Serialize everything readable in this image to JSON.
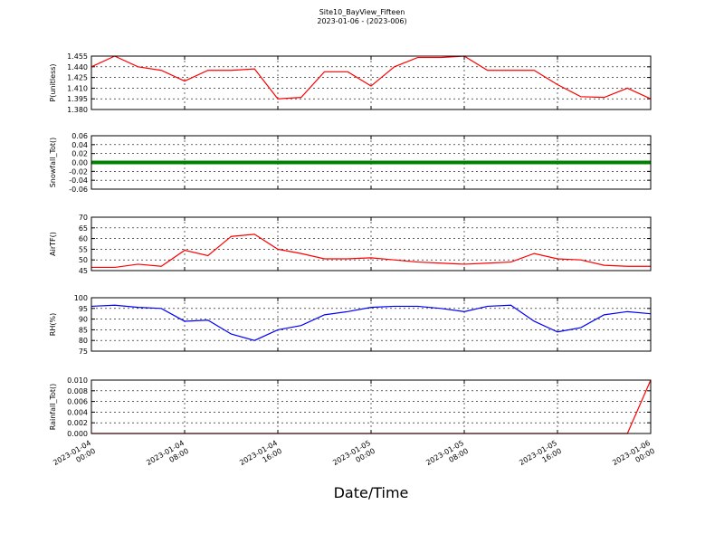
{
  "title": "Site10_BayView_Fifteen",
  "subtitle": "2023-01-06 - (2023-006)",
  "xlabel": "Date/Time",
  "chart_data": [
    {
      "type": "line",
      "ylabel": "P(unitless)",
      "color": "#ff0000",
      "grid": true,
      "xlim": [
        "2023-01-04 00:00",
        "2023-01-06 00:00"
      ],
      "x": [
        "2023-01-04 00:00",
        "2023-01-04 02:00",
        "2023-01-04 04:00",
        "2023-01-04 06:00",
        "2023-01-04 08:00",
        "2023-01-04 10:00",
        "2023-01-04 12:00",
        "2023-01-04 14:00",
        "2023-01-04 16:00",
        "2023-01-04 18:00",
        "2023-01-04 20:00",
        "2023-01-04 22:00",
        "2023-01-05 00:00",
        "2023-01-05 02:00",
        "2023-01-05 04:00",
        "2023-01-05 06:00",
        "2023-01-05 08:00",
        "2023-01-05 10:00",
        "2023-01-05 12:00",
        "2023-01-05 14:00",
        "2023-01-05 16:00",
        "2023-01-05 18:00",
        "2023-01-05 20:00",
        "2023-01-05 22:00",
        "2023-01-06 00:00"
      ],
      "values": [
        1.44,
        1.455,
        1.44,
        1.435,
        1.42,
        1.435,
        1.435,
        1.437,
        1.395,
        1.397,
        1.433,
        1.433,
        1.413,
        1.44,
        1.453,
        1.453,
        1.455,
        1.435,
        1.435,
        1.435,
        1.415,
        1.398,
        1.397,
        1.41,
        1.395
      ],
      "ylim": [
        1.38,
        1.455
      ],
      "yticks": [
        {
          "value": 1.38,
          "label": "1.380"
        },
        {
          "value": 1.395,
          "label": "1.395"
        },
        {
          "value": 1.41,
          "label": "1.410"
        },
        {
          "value": 1.425,
          "label": "1.425"
        },
        {
          "value": 1.44,
          "label": "1.440"
        },
        {
          "value": 1.455,
          "label": "1.455"
        }
      ]
    },
    {
      "type": "line",
      "ylabel": "Snowfall_Tot()",
      "color": "#008000",
      "grid": true,
      "xlim": [
        "2023-01-04 00:00",
        "2023-01-06 00:00"
      ],
      "x": [
        "2023-01-04 00:00",
        "2023-01-04 02:00",
        "2023-01-04 04:00",
        "2023-01-04 06:00",
        "2023-01-04 08:00",
        "2023-01-04 10:00",
        "2023-01-04 12:00",
        "2023-01-04 14:00",
        "2023-01-04 16:00",
        "2023-01-04 18:00",
        "2023-01-04 20:00",
        "2023-01-04 22:00",
        "2023-01-05 00:00",
        "2023-01-05 02:00",
        "2023-01-05 04:00",
        "2023-01-05 06:00",
        "2023-01-05 08:00",
        "2023-01-05 10:00",
        "2023-01-05 12:00",
        "2023-01-05 14:00",
        "2023-01-05 16:00",
        "2023-01-05 18:00",
        "2023-01-05 20:00",
        "2023-01-05 22:00",
        "2023-01-06 00:00"
      ],
      "values": [
        0,
        0,
        0,
        0,
        0,
        0,
        0,
        0,
        0,
        0,
        0,
        0,
        0,
        0,
        0,
        0,
        0,
        0,
        0,
        0,
        0,
        0,
        0,
        0,
        0
      ],
      "ylim": [
        -0.06,
        0.06
      ],
      "yticks": [
        -0.06,
        -0.04,
        -0.02,
        {
          "value": 0,
          "label": "0.00"
        },
        0.02,
        0.04,
        0.06
      ]
    },
    {
      "type": "line",
      "ylabel": "AirTF()",
      "color": "#ff0000",
      "grid": true,
      "xlim": [
        "2023-01-04 00:00",
        "2023-01-06 00:00"
      ],
      "x": [
        "2023-01-04 00:00",
        "2023-01-04 02:00",
        "2023-01-04 04:00",
        "2023-01-04 06:00",
        "2023-01-04 08:00",
        "2023-01-04 10:00",
        "2023-01-04 12:00",
        "2023-01-04 14:00",
        "2023-01-04 16:00",
        "2023-01-04 18:00",
        "2023-01-04 20:00",
        "2023-01-04 22:00",
        "2023-01-05 00:00",
        "2023-01-05 02:00",
        "2023-01-05 04:00",
        "2023-01-05 06:00",
        "2023-01-05 08:00",
        "2023-01-05 10:00",
        "2023-01-05 12:00",
        "2023-01-05 14:00",
        "2023-01-05 16:00",
        "2023-01-05 18:00",
        "2023-01-05 20:00",
        "2023-01-05 22:00",
        "2023-01-06 00:00"
      ],
      "values": [
        46.5,
        46.5,
        48,
        47,
        54.5,
        52,
        61,
        62,
        55,
        53,
        50.5,
        50.5,
        51,
        50,
        49,
        48.5,
        48,
        48.5,
        49,
        53,
        50.5,
        50,
        47.5,
        47,
        47
      ],
      "ylim": [
        45,
        70
      ],
      "yticks": [
        45,
        50,
        55,
        60,
        65,
        70
      ]
    },
    {
      "type": "line",
      "ylabel": "RH(%)",
      "color": "#0000ff",
      "grid": true,
      "xlim": [
        "2023-01-04 00:00",
        "2023-01-06 00:00"
      ],
      "x": [
        "2023-01-04 00:00",
        "2023-01-04 02:00",
        "2023-01-04 04:00",
        "2023-01-04 06:00",
        "2023-01-04 08:00",
        "2023-01-04 10:00",
        "2023-01-04 12:00",
        "2023-01-04 14:00",
        "2023-01-04 16:00",
        "2023-01-04 18:00",
        "2023-01-04 20:00",
        "2023-01-04 22:00",
        "2023-01-05 00:00",
        "2023-01-05 02:00",
        "2023-01-05 04:00",
        "2023-01-05 06:00",
        "2023-01-05 08:00",
        "2023-01-05 10:00",
        "2023-01-05 12:00",
        "2023-01-05 14:00",
        "2023-01-05 16:00",
        "2023-01-05 18:00",
        "2023-01-05 20:00",
        "2023-01-05 22:00",
        "2023-01-06 00:00"
      ],
      "values": [
        96,
        96.5,
        95.5,
        95,
        89,
        89.5,
        83,
        80,
        85,
        87,
        92,
        93.5,
        95.5,
        96,
        96,
        95,
        93.5,
        96,
        96.5,
        89,
        84,
        86,
        92,
        93.5,
        92.5
      ],
      "ylim": [
        75,
        100
      ],
      "yticks": [
        75,
        80,
        85,
        90,
        95,
        100
      ]
    },
    {
      "type": "line",
      "ylabel": "Rainfall_Tot()",
      "color": "#ff0000",
      "grid": true,
      "xlim": [
        "2023-01-04 00:00",
        "2023-01-06 00:00"
      ],
      "x": [
        "2023-01-04 00:00",
        "2023-01-04 02:00",
        "2023-01-04 04:00",
        "2023-01-04 06:00",
        "2023-01-04 08:00",
        "2023-01-04 10:00",
        "2023-01-04 12:00",
        "2023-01-04 14:00",
        "2023-01-04 16:00",
        "2023-01-04 18:00",
        "2023-01-04 20:00",
        "2023-01-04 22:00",
        "2023-01-05 00:00",
        "2023-01-05 02:00",
        "2023-01-05 04:00",
        "2023-01-05 06:00",
        "2023-01-05 08:00",
        "2023-01-05 10:00",
        "2023-01-05 12:00",
        "2023-01-05 14:00",
        "2023-01-05 16:00",
        "2023-01-05 18:00",
        "2023-01-05 20:00",
        "2023-01-05 22:00",
        "2023-01-06 00:00"
      ],
      "values": [
        0,
        0,
        0,
        0,
        0,
        0,
        0,
        0,
        0,
        0,
        0,
        0,
        0,
        0,
        0,
        0,
        0,
        0,
        0,
        0,
        0,
        0,
        0,
        0,
        0.01
      ],
      "ylim": [
        0,
        0.01
      ],
      "yticks": [
        {
          "value": 0,
          "label": "0.000"
        },
        {
          "value": 0.002,
          "label": "0.002"
        },
        {
          "value": 0.004,
          "label": "0.004"
        },
        {
          "value": 0.006,
          "label": "0.006"
        },
        {
          "value": 0.008,
          "label": "0.008"
        },
        {
          "value": 0.01,
          "label": "0.010"
        }
      ],
      "xticks": [
        {
          "value": "2023-01-04 00:00",
          "label": "2023-01-04\n00:00"
        },
        {
          "value": "2023-01-04 08:00",
          "label": "2023-01-04\n08:00"
        },
        {
          "value": "2023-01-04 16:00",
          "label": "2023-01-04\n16:00"
        },
        {
          "value": "2023-01-05 00:00",
          "label": "2023-01-05\n00:00"
        },
        {
          "value": "2023-01-05 08:00",
          "label": "2023-01-05\n08:00"
        },
        {
          "value": "2023-01-05 16:00",
          "label": "2023-01-05\n16:00"
        },
        {
          "value": "2023-01-06 00:00",
          "label": "2023-01-06\n00:00"
        }
      ]
    }
  ]
}
